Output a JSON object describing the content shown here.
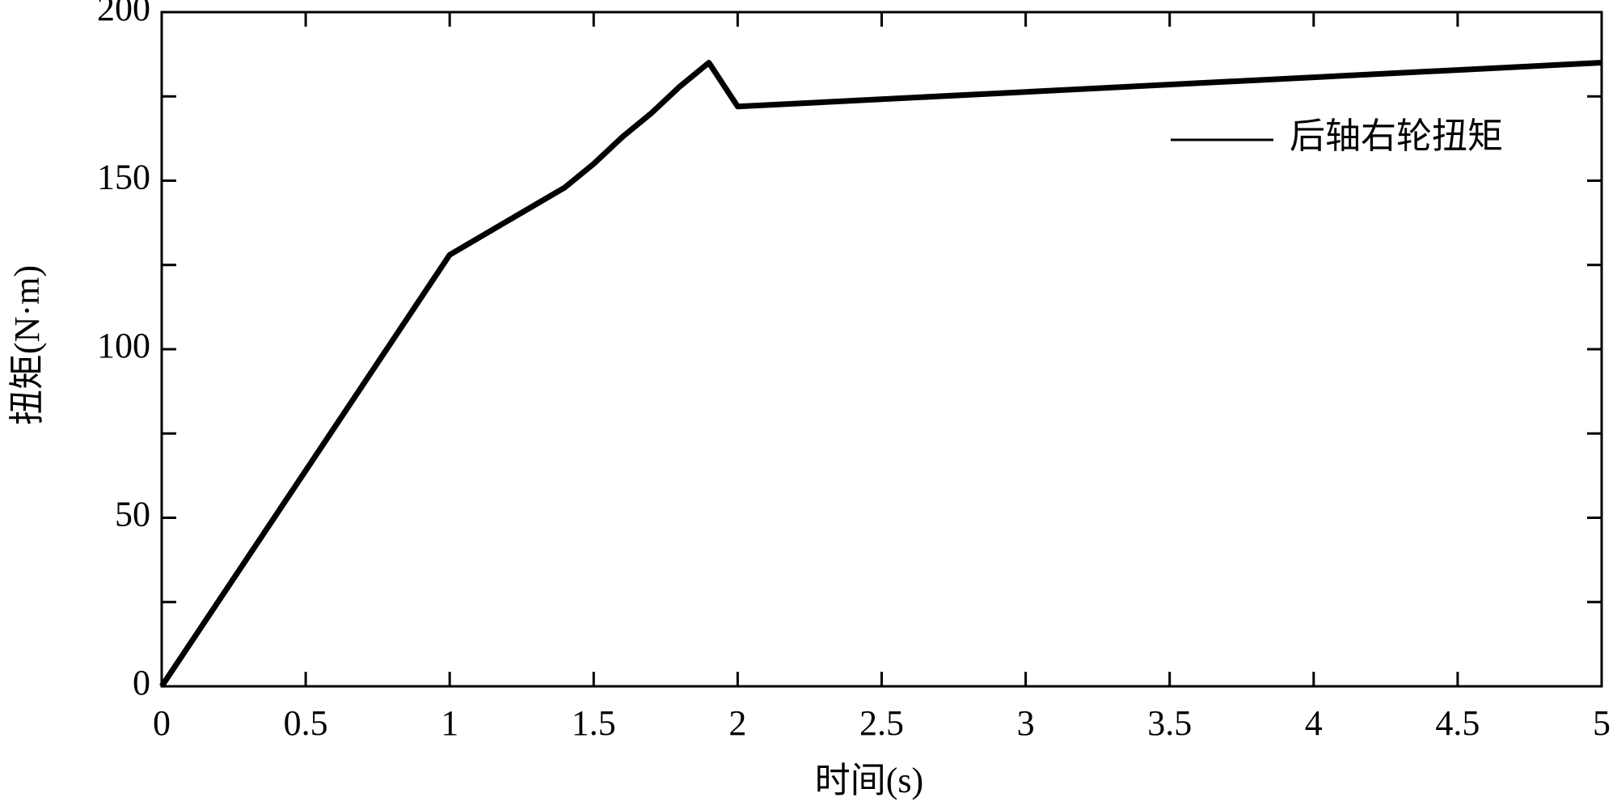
{
  "chart_data": {
    "type": "line",
    "x_label": "时间(s)",
    "y_label": "扭矩(N·m)",
    "x": [
      0,
      1,
      1.1,
      1.2,
      1.3,
      1.4,
      1.5,
      1.6,
      1.7,
      1.8,
      1.9,
      2,
      5
    ],
    "series": [
      {
        "name": "后轴右轮扭矩",
        "color": "#000000",
        "values": [
          0,
          128,
          133,
          138,
          143,
          148,
          155,
          163,
          170,
          178,
          185,
          172,
          185
        ]
      }
    ],
    "xlim": [
      0,
      5
    ],
    "xticks": [
      0,
      0.5,
      1,
      1.5,
      2,
      2.5,
      3,
      3.5,
      4,
      4.5,
      5
    ],
    "ylim": [
      0,
      200
    ],
    "yticks": [
      0,
      50,
      100,
      150,
      200
    ],
    "grid": false,
    "legend": "upper right"
  }
}
